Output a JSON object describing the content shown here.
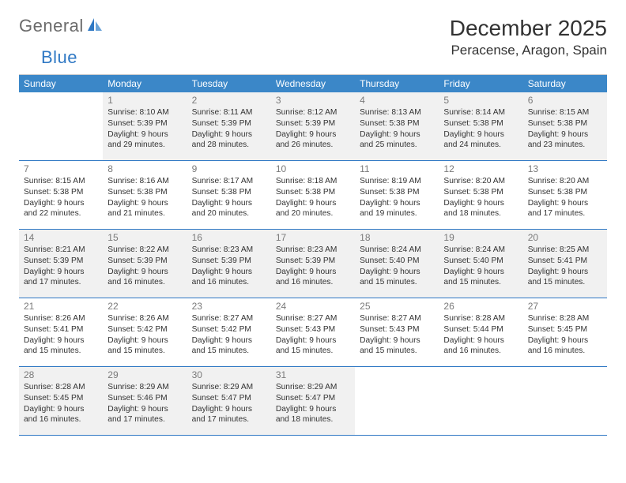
{
  "logo": {
    "text1": "General",
    "text2": "Blue"
  },
  "title": "December 2025",
  "location": "Peracense, Aragon, Spain",
  "colors": {
    "header_bg": "#3b87c8",
    "header_text": "#ffffff",
    "row_border": "#2f78c4",
    "shaded_bg": "#f1f1f1",
    "daynum_color": "#7a7a7a",
    "text_color": "#333333"
  },
  "dow": [
    "Sunday",
    "Monday",
    "Tuesday",
    "Wednesday",
    "Thursday",
    "Friday",
    "Saturday"
  ],
  "weeks": [
    [
      {
        "num": "",
        "sunrise": "",
        "sunset": "",
        "daylight": "",
        "shaded": false
      },
      {
        "num": "1",
        "sunrise": "Sunrise: 8:10 AM",
        "sunset": "Sunset: 5:39 PM",
        "daylight": "Daylight: 9 hours and 29 minutes.",
        "shaded": true
      },
      {
        "num": "2",
        "sunrise": "Sunrise: 8:11 AM",
        "sunset": "Sunset: 5:39 PM",
        "daylight": "Daylight: 9 hours and 28 minutes.",
        "shaded": true
      },
      {
        "num": "3",
        "sunrise": "Sunrise: 8:12 AM",
        "sunset": "Sunset: 5:39 PM",
        "daylight": "Daylight: 9 hours and 26 minutes.",
        "shaded": true
      },
      {
        "num": "4",
        "sunrise": "Sunrise: 8:13 AM",
        "sunset": "Sunset: 5:38 PM",
        "daylight": "Daylight: 9 hours and 25 minutes.",
        "shaded": true
      },
      {
        "num": "5",
        "sunrise": "Sunrise: 8:14 AM",
        "sunset": "Sunset: 5:38 PM",
        "daylight": "Daylight: 9 hours and 24 minutes.",
        "shaded": true
      },
      {
        "num": "6",
        "sunrise": "Sunrise: 8:15 AM",
        "sunset": "Sunset: 5:38 PM",
        "daylight": "Daylight: 9 hours and 23 minutes.",
        "shaded": true
      }
    ],
    [
      {
        "num": "7",
        "sunrise": "Sunrise: 8:15 AM",
        "sunset": "Sunset: 5:38 PM",
        "daylight": "Daylight: 9 hours and 22 minutes.",
        "shaded": false
      },
      {
        "num": "8",
        "sunrise": "Sunrise: 8:16 AM",
        "sunset": "Sunset: 5:38 PM",
        "daylight": "Daylight: 9 hours and 21 minutes.",
        "shaded": false
      },
      {
        "num": "9",
        "sunrise": "Sunrise: 8:17 AM",
        "sunset": "Sunset: 5:38 PM",
        "daylight": "Daylight: 9 hours and 20 minutes.",
        "shaded": false
      },
      {
        "num": "10",
        "sunrise": "Sunrise: 8:18 AM",
        "sunset": "Sunset: 5:38 PM",
        "daylight": "Daylight: 9 hours and 20 minutes.",
        "shaded": false
      },
      {
        "num": "11",
        "sunrise": "Sunrise: 8:19 AM",
        "sunset": "Sunset: 5:38 PM",
        "daylight": "Daylight: 9 hours and 19 minutes.",
        "shaded": false
      },
      {
        "num": "12",
        "sunrise": "Sunrise: 8:20 AM",
        "sunset": "Sunset: 5:38 PM",
        "daylight": "Daylight: 9 hours and 18 minutes.",
        "shaded": false
      },
      {
        "num": "13",
        "sunrise": "Sunrise: 8:20 AM",
        "sunset": "Sunset: 5:38 PM",
        "daylight": "Daylight: 9 hours and 17 minutes.",
        "shaded": false
      }
    ],
    [
      {
        "num": "14",
        "sunrise": "Sunrise: 8:21 AM",
        "sunset": "Sunset: 5:39 PM",
        "daylight": "Daylight: 9 hours and 17 minutes.",
        "shaded": true
      },
      {
        "num": "15",
        "sunrise": "Sunrise: 8:22 AM",
        "sunset": "Sunset: 5:39 PM",
        "daylight": "Daylight: 9 hours and 16 minutes.",
        "shaded": true
      },
      {
        "num": "16",
        "sunrise": "Sunrise: 8:23 AM",
        "sunset": "Sunset: 5:39 PM",
        "daylight": "Daylight: 9 hours and 16 minutes.",
        "shaded": true
      },
      {
        "num": "17",
        "sunrise": "Sunrise: 8:23 AM",
        "sunset": "Sunset: 5:39 PM",
        "daylight": "Daylight: 9 hours and 16 minutes.",
        "shaded": true
      },
      {
        "num": "18",
        "sunrise": "Sunrise: 8:24 AM",
        "sunset": "Sunset: 5:40 PM",
        "daylight": "Daylight: 9 hours and 15 minutes.",
        "shaded": true
      },
      {
        "num": "19",
        "sunrise": "Sunrise: 8:24 AM",
        "sunset": "Sunset: 5:40 PM",
        "daylight": "Daylight: 9 hours and 15 minutes.",
        "shaded": true
      },
      {
        "num": "20",
        "sunrise": "Sunrise: 8:25 AM",
        "sunset": "Sunset: 5:41 PM",
        "daylight": "Daylight: 9 hours and 15 minutes.",
        "shaded": true
      }
    ],
    [
      {
        "num": "21",
        "sunrise": "Sunrise: 8:26 AM",
        "sunset": "Sunset: 5:41 PM",
        "daylight": "Daylight: 9 hours and 15 minutes.",
        "shaded": false
      },
      {
        "num": "22",
        "sunrise": "Sunrise: 8:26 AM",
        "sunset": "Sunset: 5:42 PM",
        "daylight": "Daylight: 9 hours and 15 minutes.",
        "shaded": false
      },
      {
        "num": "23",
        "sunrise": "Sunrise: 8:27 AM",
        "sunset": "Sunset: 5:42 PM",
        "daylight": "Daylight: 9 hours and 15 minutes.",
        "shaded": false
      },
      {
        "num": "24",
        "sunrise": "Sunrise: 8:27 AM",
        "sunset": "Sunset: 5:43 PM",
        "daylight": "Daylight: 9 hours and 15 minutes.",
        "shaded": false
      },
      {
        "num": "25",
        "sunrise": "Sunrise: 8:27 AM",
        "sunset": "Sunset: 5:43 PM",
        "daylight": "Daylight: 9 hours and 15 minutes.",
        "shaded": false
      },
      {
        "num": "26",
        "sunrise": "Sunrise: 8:28 AM",
        "sunset": "Sunset: 5:44 PM",
        "daylight": "Daylight: 9 hours and 16 minutes.",
        "shaded": false
      },
      {
        "num": "27",
        "sunrise": "Sunrise: 8:28 AM",
        "sunset": "Sunset: 5:45 PM",
        "daylight": "Daylight: 9 hours and 16 minutes.",
        "shaded": false
      }
    ],
    [
      {
        "num": "28",
        "sunrise": "Sunrise: 8:28 AM",
        "sunset": "Sunset: 5:45 PM",
        "daylight": "Daylight: 9 hours and 16 minutes.",
        "shaded": true
      },
      {
        "num": "29",
        "sunrise": "Sunrise: 8:29 AM",
        "sunset": "Sunset: 5:46 PM",
        "daylight": "Daylight: 9 hours and 17 minutes.",
        "shaded": true
      },
      {
        "num": "30",
        "sunrise": "Sunrise: 8:29 AM",
        "sunset": "Sunset: 5:47 PM",
        "daylight": "Daylight: 9 hours and 17 minutes.",
        "shaded": true
      },
      {
        "num": "31",
        "sunrise": "Sunrise: 8:29 AM",
        "sunset": "Sunset: 5:47 PM",
        "daylight": "Daylight: 9 hours and 18 minutes.",
        "shaded": true
      },
      {
        "num": "",
        "sunrise": "",
        "sunset": "",
        "daylight": "",
        "shaded": false
      },
      {
        "num": "",
        "sunrise": "",
        "sunset": "",
        "daylight": "",
        "shaded": false
      },
      {
        "num": "",
        "sunrise": "",
        "sunset": "",
        "daylight": "",
        "shaded": false
      }
    ]
  ]
}
